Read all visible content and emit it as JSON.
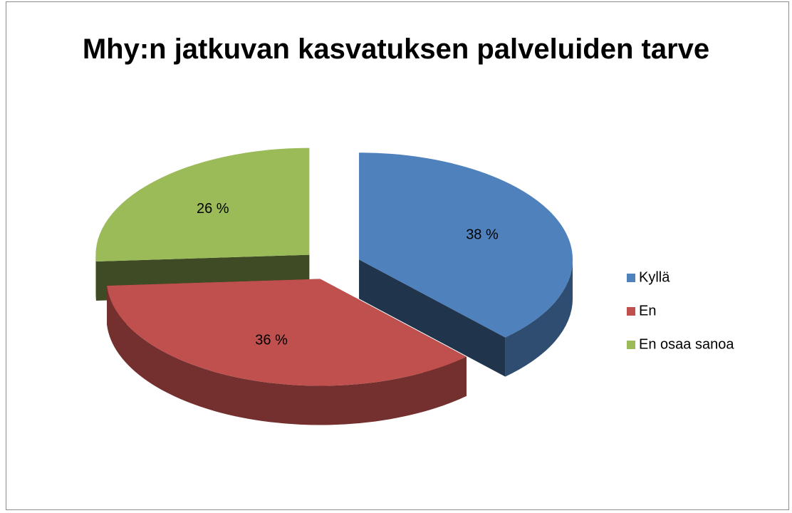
{
  "chart_data": {
    "type": "pie",
    "title": "Mhy:n jatkuvan kasvatuksen palveluiden tarve",
    "categories": [
      "Kyllä",
      "En",
      "En osaa sanoa"
    ],
    "values": [
      38,
      36,
      26
    ],
    "value_labels": [
      "38 %",
      "36 %",
      "26 %"
    ],
    "colors": [
      "#4f81bd",
      "#c0504d",
      "#9bbb59"
    ],
    "legend": "right"
  }
}
